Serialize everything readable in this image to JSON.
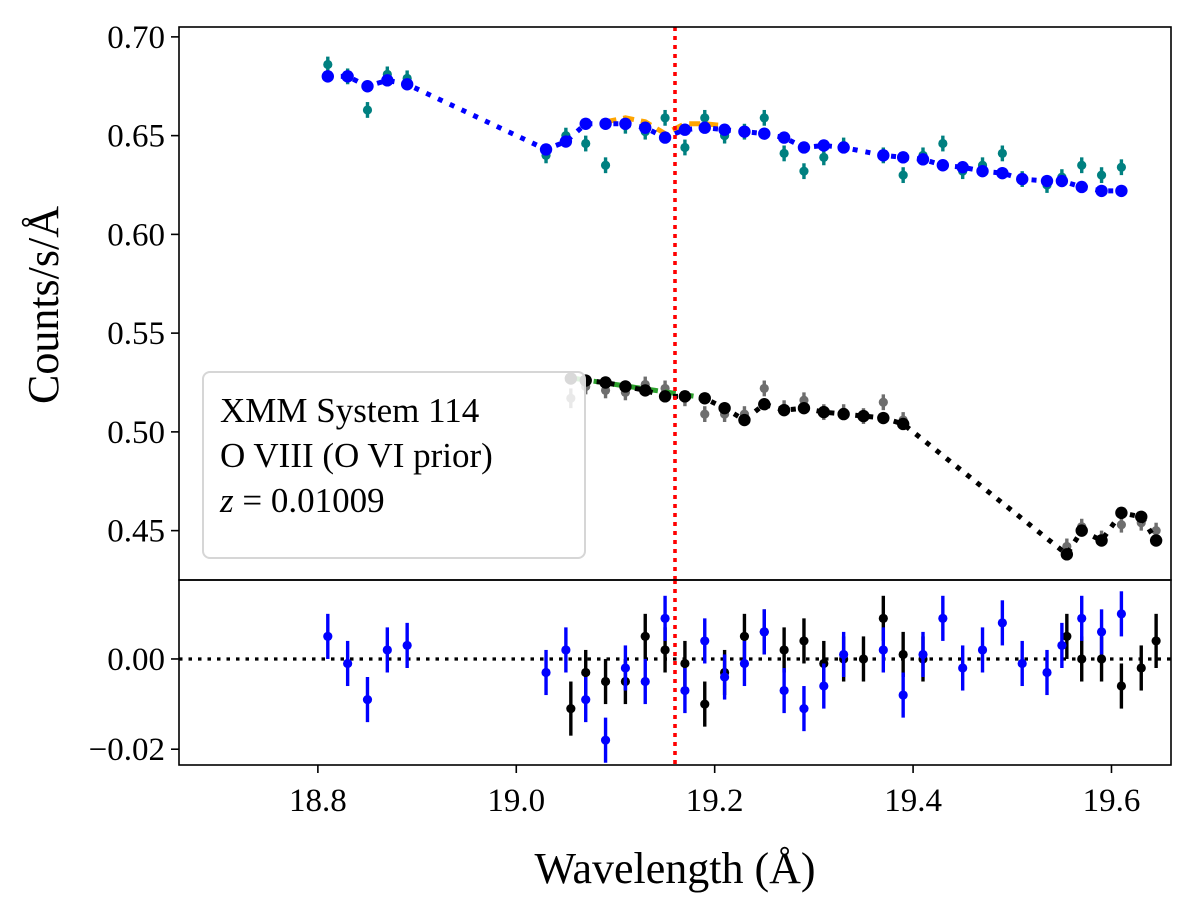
{
  "chart_data": [
    {
      "type": "scatter",
      "panel": "top",
      "ylabel": "Counts/s/Å",
      "ylim": [
        0.425,
        0.705
      ],
      "yticks": [
        0.45,
        0.5,
        0.55,
        0.6,
        0.65,
        0.7
      ],
      "ytick_labels": [
        "0.45",
        "0.50",
        "0.55",
        "0.60",
        "0.65",
        "0.70"
      ],
      "xlim": [
        18.66,
        19.66
      ],
      "reference_line": {
        "x": 19.16,
        "color": "#ff0000",
        "style": "dotted"
      },
      "legend_box": {
        "placement": "lower-left",
        "lines": [
          "XMM System 114",
          "O VIII (O VI prior)"
        ],
        "z_symbol": "z",
        "z_text": " = 0.01009"
      },
      "series": [
        {
          "name": "upper data",
          "color": "#008080",
          "kind": "errorbar",
          "x": [
            18.81,
            18.83,
            18.85,
            18.87,
            18.89,
            19.03,
            19.05,
            19.07,
            19.09,
            19.11,
            19.13,
            19.15,
            19.17,
            19.19,
            19.21,
            19.23,
            19.25,
            19.27,
            19.29,
            19.31,
            19.33,
            19.37,
            19.39,
            19.41,
            19.43,
            19.45,
            19.47,
            19.49,
            19.51,
            19.535,
            19.55,
            19.57,
            19.59,
            19.61
          ],
          "y": [
            0.686,
            0.68,
            0.663,
            0.681,
            0.679,
            0.64,
            0.65,
            0.646,
            0.635,
            0.655,
            0.652,
            0.659,
            0.644,
            0.659,
            0.65,
            0.652,
            0.659,
            0.641,
            0.632,
            0.639,
            0.645,
            0.64,
            0.63,
            0.64,
            0.646,
            0.632,
            0.635,
            0.641,
            0.628,
            0.625,
            0.629,
            0.635,
            0.63,
            0.634
          ],
          "err": [
            0.004,
            0.004,
            0.004,
            0.004,
            0.004,
            0.004,
            0.004,
            0.004,
            0.004,
            0.004,
            0.004,
            0.004,
            0.004,
            0.004,
            0.004,
            0.004,
            0.004,
            0.004,
            0.004,
            0.004,
            0.004,
            0.004,
            0.004,
            0.004,
            0.004,
            0.004,
            0.004,
            0.004,
            0.004,
            0.004,
            0.004,
            0.004,
            0.004,
            0.004
          ]
        },
        {
          "name": "upper model (alt)",
          "color": "#ffa500",
          "kind": "dashed",
          "x": [
            19.09,
            19.11,
            19.13,
            19.15,
            19.17,
            19.19,
            19.21
          ],
          "y": [
            0.657,
            0.659,
            0.657,
            0.651,
            0.656,
            0.656,
            0.655
          ]
        },
        {
          "name": "upper model",
          "color": "#0000ff",
          "kind": "dotted-line-markers",
          "x": [
            18.81,
            18.83,
            18.85,
            18.87,
            18.89,
            19.03,
            19.05,
            19.07,
            19.09,
            19.11,
            19.13,
            19.15,
            19.17,
            19.19,
            19.21,
            19.23,
            19.25,
            19.27,
            19.29,
            19.31,
            19.33,
            19.37,
            19.39,
            19.41,
            19.43,
            19.45,
            19.47,
            19.49,
            19.51,
            19.535,
            19.55,
            19.57,
            19.59,
            19.61
          ],
          "y": [
            0.68,
            0.68,
            0.675,
            0.678,
            0.676,
            0.643,
            0.647,
            0.656,
            0.656,
            0.656,
            0.654,
            0.649,
            0.653,
            0.654,
            0.653,
            0.652,
            0.651,
            0.649,
            0.644,
            0.645,
            0.644,
            0.64,
            0.639,
            0.638,
            0.635,
            0.634,
            0.632,
            0.631,
            0.628,
            0.627,
            0.627,
            0.624,
            0.622,
            0.622
          ]
        },
        {
          "name": "lower data",
          "color": "#6e6e6e",
          "kind": "errorbar",
          "x": [
            19.055,
            19.07,
            19.09,
            19.11,
            19.13,
            19.15,
            19.17,
            19.19,
            19.21,
            19.23,
            19.25,
            19.27,
            19.29,
            19.31,
            19.33,
            19.35,
            19.37,
            19.39,
            19.555,
            19.57,
            19.59,
            19.61,
            19.63,
            19.645
          ],
          "y": [
            0.517,
            0.523,
            0.521,
            0.52,
            0.524,
            0.522,
            0.517,
            0.509,
            0.509,
            0.509,
            0.522,
            0.512,
            0.516,
            0.51,
            0.51,
            0.508,
            0.515,
            0.506,
            0.442,
            0.452,
            0.446,
            0.453,
            0.454,
            0.45
          ],
          "err": [
            0.005,
            0.004,
            0.004,
            0.004,
            0.004,
            0.004,
            0.004,
            0.004,
            0.004,
            0.004,
            0.004,
            0.004,
            0.004,
            0.004,
            0.004,
            0.004,
            0.004,
            0.004,
            0.004,
            0.004,
            0.004,
            0.004,
            0.004,
            0.004
          ]
        },
        {
          "name": "lower model (alt)",
          "color": "#2ca02c",
          "kind": "dashed",
          "x": [
            19.06,
            19.1,
            19.14,
            19.18
          ],
          "y": [
            0.527,
            0.524,
            0.521,
            0.518
          ]
        },
        {
          "name": "lower model",
          "color": "#000000",
          "kind": "dotted-line-markers",
          "x": [
            19.055,
            19.07,
            19.09,
            19.11,
            19.13,
            19.15,
            19.17,
            19.19,
            19.21,
            19.23,
            19.25,
            19.27,
            19.29,
            19.31,
            19.33,
            19.35,
            19.37,
            19.39,
            19.555,
            19.57,
            19.59,
            19.61,
            19.63,
            19.645
          ],
          "y": [
            0.527,
            0.526,
            0.525,
            0.523,
            0.521,
            0.518,
            0.518,
            0.517,
            0.512,
            0.506,
            0.514,
            0.511,
            0.512,
            0.51,
            0.509,
            0.508,
            0.507,
            0.504,
            0.438,
            0.45,
            0.445,
            0.459,
            0.457,
            0.445
          ]
        }
      ]
    },
    {
      "type": "scatter",
      "panel": "bottom",
      "xlabel": "Wavelength (Å)",
      "xlim": [
        18.66,
        19.66
      ],
      "ylim": [
        -0.0235,
        0.0175
      ],
      "xticks": [
        18.8,
        19.0,
        19.2,
        19.4,
        19.6
      ],
      "xtick_labels": [
        "18.8",
        "19.0",
        "19.2",
        "19.4",
        "19.6"
      ],
      "yticks": [
        -0.02,
        0.0
      ],
      "ytick_labels": [
        "−0.02",
        "0.00"
      ],
      "zero_line": {
        "y": 0.0,
        "color": "#000000",
        "style": "dotted"
      },
      "reference_line": {
        "x": 19.16,
        "color": "#ff0000",
        "style": "dotted"
      },
      "series": [
        {
          "name": "lower residuals",
          "color": "#000000",
          "kind": "errorbar",
          "x": [
            19.055,
            19.07,
            19.09,
            19.11,
            19.13,
            19.15,
            19.17,
            19.19,
            19.21,
            19.23,
            19.25,
            19.27,
            19.29,
            19.31,
            19.33,
            19.35,
            19.37,
            19.39,
            19.41,
            19.555,
            19.57,
            19.59,
            19.61,
            19.63,
            19.645
          ],
          "y": [
            -0.011,
            -0.003,
            -0.005,
            -0.005,
            0.005,
            0.002,
            -0.001,
            -0.01,
            -0.003,
            0.005,
            0.006,
            0.002,
            0.004,
            -0.001,
            0.0,
            0.0,
            0.009,
            0.001,
            0.0,
            0.005,
            0.0,
            0.0,
            -0.006,
            -0.002,
            0.004
          ],
          "err": [
            0.006,
            0.005,
            0.005,
            0.005,
            0.005,
            0.005,
            0.005,
            0.005,
            0.005,
            0.005,
            0.005,
            0.005,
            0.005,
            0.005,
            0.005,
            0.005,
            0.005,
            0.005,
            0.005,
            0.005,
            0.005,
            0.005,
            0.005,
            0.005,
            0.006
          ]
        },
        {
          "name": "upper residuals",
          "color": "#0000ff",
          "kind": "errorbar",
          "x": [
            18.81,
            18.83,
            18.85,
            18.87,
            18.89,
            19.03,
            19.05,
            19.07,
            19.09,
            19.11,
            19.13,
            19.15,
            19.17,
            19.19,
            19.21,
            19.23,
            19.25,
            19.27,
            19.29,
            19.31,
            19.33,
            19.37,
            19.39,
            19.41,
            19.43,
            19.45,
            19.47,
            19.49,
            19.51,
            19.535,
            19.55,
            19.57,
            19.59,
            19.61
          ],
          "y": [
            0.005,
            -0.001,
            -0.009,
            0.002,
            0.003,
            -0.003,
            0.002,
            -0.009,
            -0.018,
            -0.002,
            -0.005,
            0.009,
            -0.007,
            0.004,
            -0.004,
            -0.001,
            0.006,
            -0.007,
            -0.011,
            -0.006,
            0.001,
            0.002,
            -0.008,
            0.001,
            0.009,
            -0.002,
            0.002,
            0.008,
            -0.001,
            -0.003,
            0.003,
            0.009,
            0.006,
            0.01
          ],
          "err": [
            0.005,
            0.005,
            0.005,
            0.005,
            0.005,
            0.005,
            0.005,
            0.005,
            0.005,
            0.005,
            0.005,
            0.005,
            0.005,
            0.005,
            0.005,
            0.005,
            0.005,
            0.005,
            0.005,
            0.005,
            0.005,
            0.005,
            0.005,
            0.005,
            0.005,
            0.005,
            0.005,
            0.005,
            0.005,
            0.005,
            0.005,
            0.005,
            0.005,
            0.005
          ]
        }
      ]
    }
  ]
}
